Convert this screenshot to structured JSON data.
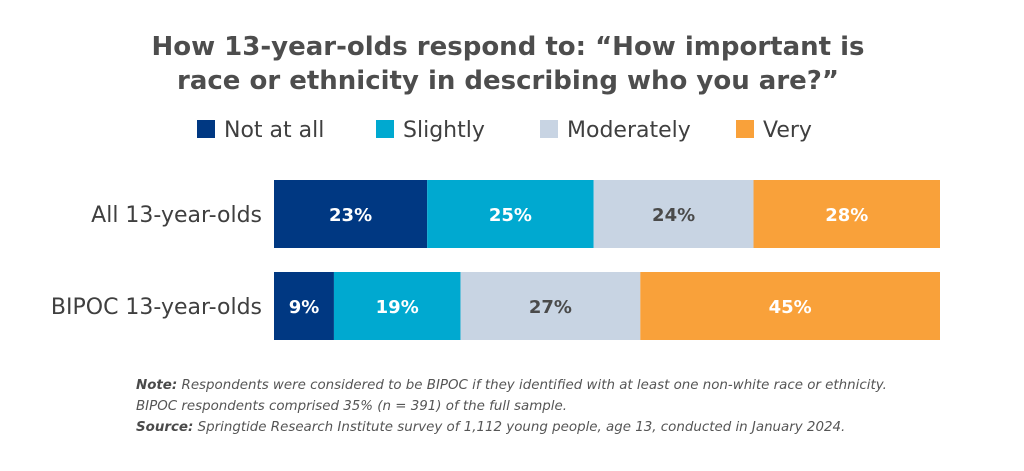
{
  "chart_data": {
    "type": "bar",
    "orientation": "horizontal",
    "stacked": true,
    "title_lines": [
      "How 13-year-olds respond to: “How important is",
      "race or ethnicity in describing who you are?”"
    ],
    "categories": [
      "All 13-year-olds",
      "BIPOC 13-year-olds"
    ],
    "series": [
      {
        "name": "Not at all",
        "color": "#003882",
        "label_color": "#ffffff",
        "values": [
          23,
          9
        ]
      },
      {
        "name": "Slightly",
        "color": "#00a9d0",
        "label_color": "#ffffff",
        "values": [
          25,
          19
        ]
      },
      {
        "name": "Moderately",
        "color": "#c8d4e3",
        "label_color": "#4a4a4a",
        "values": [
          24,
          27
        ]
      },
      {
        "name": "Very",
        "color": "#f9a13a",
        "label_color": "#ffffff",
        "values": [
          28,
          45
        ]
      }
    ],
    "value_suffix": "%",
    "xlim": [
      0,
      100
    ],
    "legend_position": "top"
  },
  "notes": {
    "note_label": "Note:",
    "note_line1": "Respondents were considered to be BIPOC if they identified with at least one non-white race or ethnicity.",
    "note_line2": "BIPOC respondents comprised 35% (n = 391) of the full sample.",
    "source_label": "Source:",
    "source_text": "Springtide Research Institute survey of 1,112 young people, age 13, conducted in January 2024."
  }
}
